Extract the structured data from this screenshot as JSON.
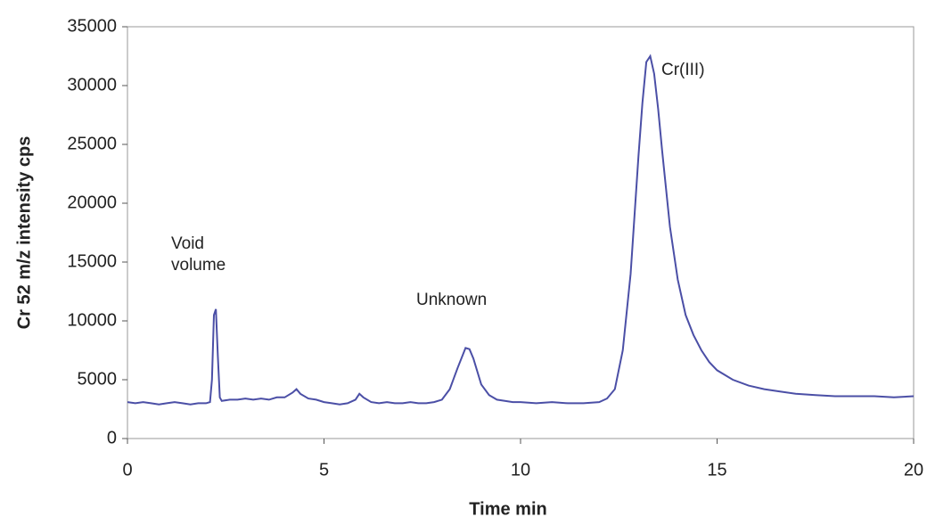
{
  "chart_data": {
    "type": "line",
    "xlabel": "Time min",
    "ylabel": "Cr 52 m/z intensity cps",
    "annotations": [
      "Void volume",
      "Unknown",
      "Cr(III)"
    ],
    "color": "#4b4fa6",
    "x": [
      0,
      0.2,
      0.4,
      0.6,
      0.8,
      1.0,
      1.2,
      1.4,
      1.6,
      1.8,
      2.0,
      2.1,
      2.15,
      2.2,
      2.25,
      2.3,
      2.35,
      2.4,
      2.6,
      2.8,
      3.0,
      3.2,
      3.4,
      3.6,
      3.8,
      4.0,
      4.2,
      4.3,
      4.4,
      4.6,
      4.8,
      5.0,
      5.2,
      5.4,
      5.6,
      5.8,
      5.9,
      6.0,
      6.2,
      6.4,
      6.6,
      6.8,
      7.0,
      7.2,
      7.4,
      7.6,
      7.8,
      8.0,
      8.2,
      8.4,
      8.6,
      8.7,
      8.8,
      9.0,
      9.2,
      9.4,
      9.6,
      9.8,
      10.0,
      10.4,
      10.8,
      11.2,
      11.6,
      12.0,
      12.2,
      12.4,
      12.6,
      12.8,
      13.0,
      13.1,
      13.2,
      13.3,
      13.4,
      13.5,
      13.6,
      13.8,
      14.0,
      14.2,
      14.4,
      14.6,
      14.8,
      15.0,
      15.4,
      15.8,
      16.2,
      16.6,
      17.0,
      17.5,
      18.0,
      18.5,
      19.0,
      19.5,
      20.0
    ],
    "values": [
      3100,
      3000,
      3100,
      3000,
      2900,
      3000,
      3100,
      3000,
      2900,
      3000,
      3000,
      3100,
      5000,
      10500,
      11000,
      7000,
      3500,
      3200,
      3300,
      3300,
      3400,
      3300,
      3400,
      3300,
      3500,
      3500,
      3900,
      4200,
      3800,
      3400,
      3300,
      3100,
      3000,
      2900,
      3000,
      3300,
      3800,
      3500,
      3100,
      3000,
      3100,
      3000,
      3000,
      3100,
      3000,
      3000,
      3100,
      3300,
      4200,
      6000,
      7700,
      7600,
      6800,
      4600,
      3700,
      3300,
      3200,
      3100,
      3100,
      3000,
      3100,
      3000,
      3000,
      3100,
      3400,
      4200,
      7500,
      14000,
      24000,
      28500,
      32000,
      32500,
      31000,
      28000,
      24500,
      18000,
      13500,
      10500,
      8800,
      7500,
      6500,
      5800,
      5000,
      4500,
      4200,
      4000,
      3800,
      3700,
      3600,
      3600,
      3600,
      3500,
      3600
    ],
    "xlim": [
      0,
      20
    ],
    "ylim": [
      0,
      35000
    ],
    "xticks": [
      0,
      5,
      10,
      15,
      20
    ],
    "yticks": [
      0,
      5000,
      10000,
      15000,
      20000,
      25000,
      30000,
      35000
    ]
  }
}
